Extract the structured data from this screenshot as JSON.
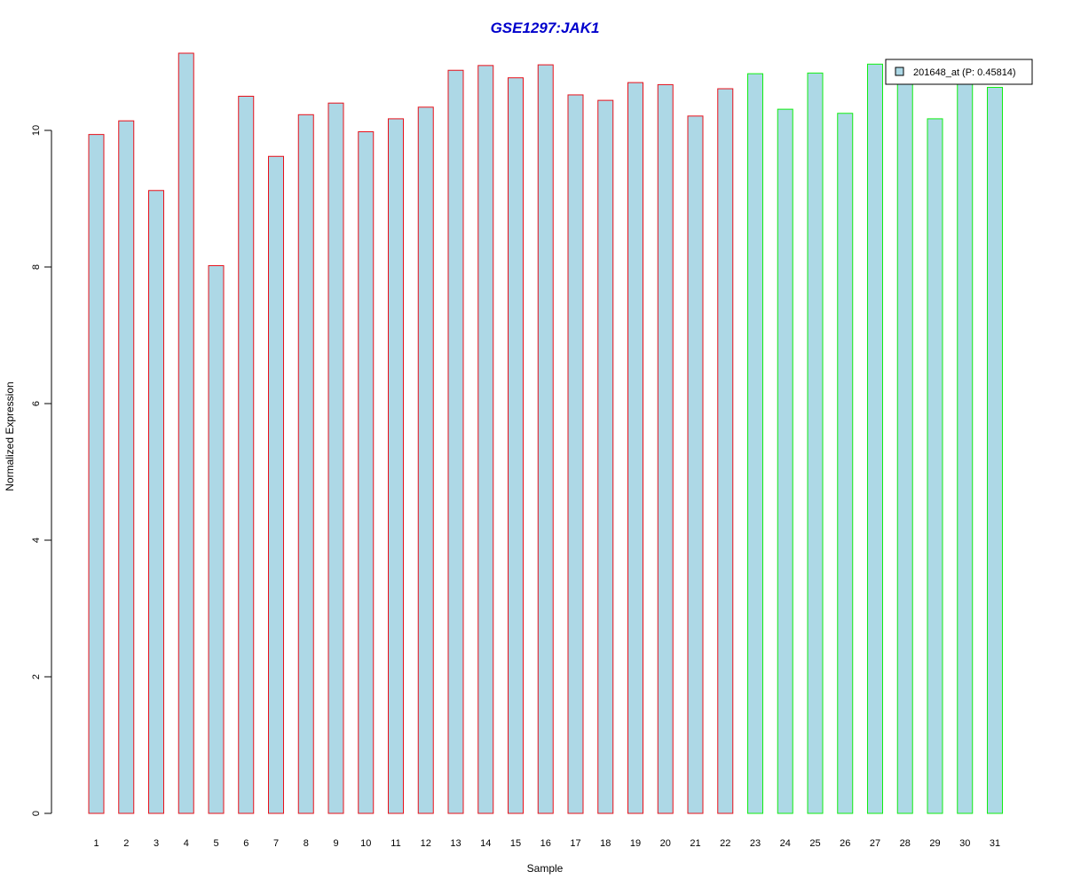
{
  "chart_data": {
    "type": "bar",
    "title": "GSE1297:JAK1",
    "xlabel": "Sample",
    "ylabel": "Normalized Expression",
    "categories": [
      "1",
      "2",
      "3",
      "4",
      "5",
      "6",
      "7",
      "8",
      "9",
      "10",
      "11",
      "12",
      "13",
      "14",
      "15",
      "16",
      "17",
      "18",
      "19",
      "20",
      "21",
      "22",
      "23",
      "24",
      "25",
      "26",
      "27",
      "28",
      "29",
      "30",
      "31"
    ],
    "series": [
      {
        "name": "201648_at (P: 0.45814)",
        "values": [
          9.94,
          10.14,
          9.12,
          11.13,
          8.02,
          10.5,
          9.62,
          10.23,
          10.4,
          9.98,
          10.17,
          10.34,
          10.88,
          10.95,
          10.77,
          10.96,
          10.52,
          10.44,
          10.7,
          10.67,
          10.21,
          10.61,
          10.83,
          10.31,
          10.84,
          10.25,
          10.97,
          10.72,
          10.17,
          10.68,
          10.63
        ]
      }
    ],
    "groups": [
      {
        "samples": [
          "1",
          "2",
          "3",
          "4",
          "5",
          "6",
          "7",
          "8",
          "9",
          "10",
          "11",
          "12",
          "13",
          "14",
          "15",
          "16",
          "17",
          "18",
          "19",
          "20",
          "21",
          "22"
        ],
        "border_color": "#e8101a"
      },
      {
        "samples": [
          "23",
          "24",
          "25",
          "26",
          "27",
          "28",
          "29",
          "30",
          "31"
        ],
        "border_color": "#11ee11"
      }
    ],
    "bar_fill": "#add8e6",
    "title_color": "#0000cc",
    "yticks": [
      0,
      2,
      4,
      6,
      8,
      10
    ],
    "ylim": [
      0,
      11.13
    ],
    "legend_position": "top-right",
    "grid": false
  }
}
